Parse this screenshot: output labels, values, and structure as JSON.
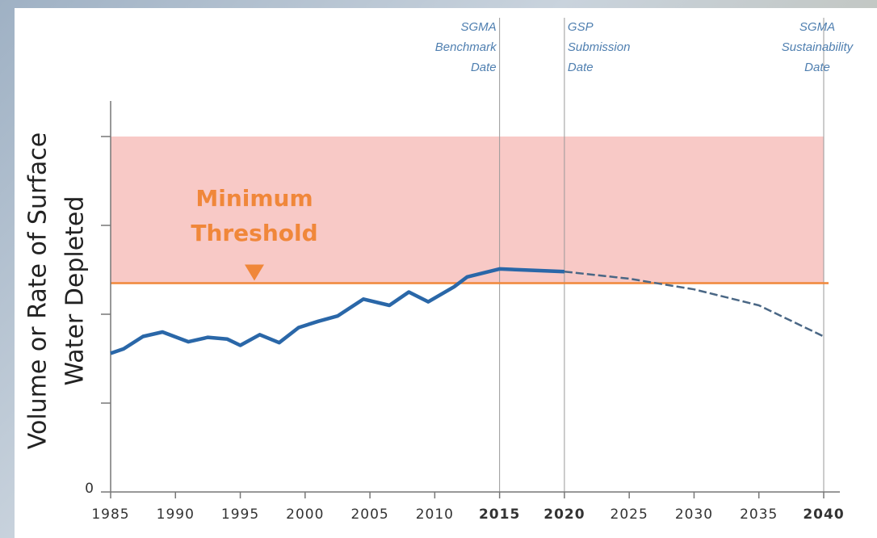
{
  "chart_data": {
    "type": "line",
    "ylabel": [
      "Volume or Rate of Surface",
      "Water Depleted"
    ],
    "xlim": [
      1985,
      2040
    ],
    "xticks": [
      1985,
      1990,
      1995,
      2000,
      2005,
      2010,
      2015,
      2020,
      2025,
      2030,
      2035,
      2040
    ],
    "ylim": [
      0,
      4.4
    ],
    "yticks": [
      0
    ],
    "yminor_ticks": [
      1,
      2,
      3,
      4
    ],
    "band": {
      "ylim": [
        2.35,
        4.0
      ],
      "color": "#f8c9c6"
    },
    "threshold": {
      "label": [
        "Minimum",
        "Threshold"
      ],
      "value": 2.35,
      "color": "#f0873a"
    },
    "series": [
      {
        "color": "#2a67a8",
        "x": [
          1985,
          1986,
          1987.5,
          1989,
          1991,
          1992.5,
          1994,
          1995,
          1996.5,
          1998,
          1999.5,
          2001,
          2002.5,
          2004.5,
          2006.5,
          2008,
          2009.5,
          2011.5,
          2012.5,
          2015,
          2020
        ],
        "values": [
          1.56,
          1.61,
          1.75,
          1.8,
          1.69,
          1.74,
          1.72,
          1.65,
          1.77,
          1.68,
          1.85,
          1.92,
          1.98,
          2.17,
          2.1,
          2.25,
          2.14,
          2.31,
          2.42,
          2.51,
          2.48
        ]
      },
      {
        "color": "#4a6785",
        "dashed": true,
        "x": [
          2020,
          2025,
          2030,
          2035,
          2040
        ],
        "values": [
          2.48,
          2.4,
          2.28,
          2.1,
          1.75
        ]
      }
    ],
    "events": [
      {
        "x": 2015,
        "label": [
          "SGMA",
          "Benchmark",
          "Date"
        ],
        "align": "end"
      },
      {
        "x": 2020,
        "label": [
          "GSP",
          "Submission",
          "Date"
        ],
        "align": "start"
      },
      {
        "x": 2040,
        "label": [
          "SGMA",
          "Sustainability",
          "Date"
        ],
        "align": "middle"
      }
    ]
  }
}
